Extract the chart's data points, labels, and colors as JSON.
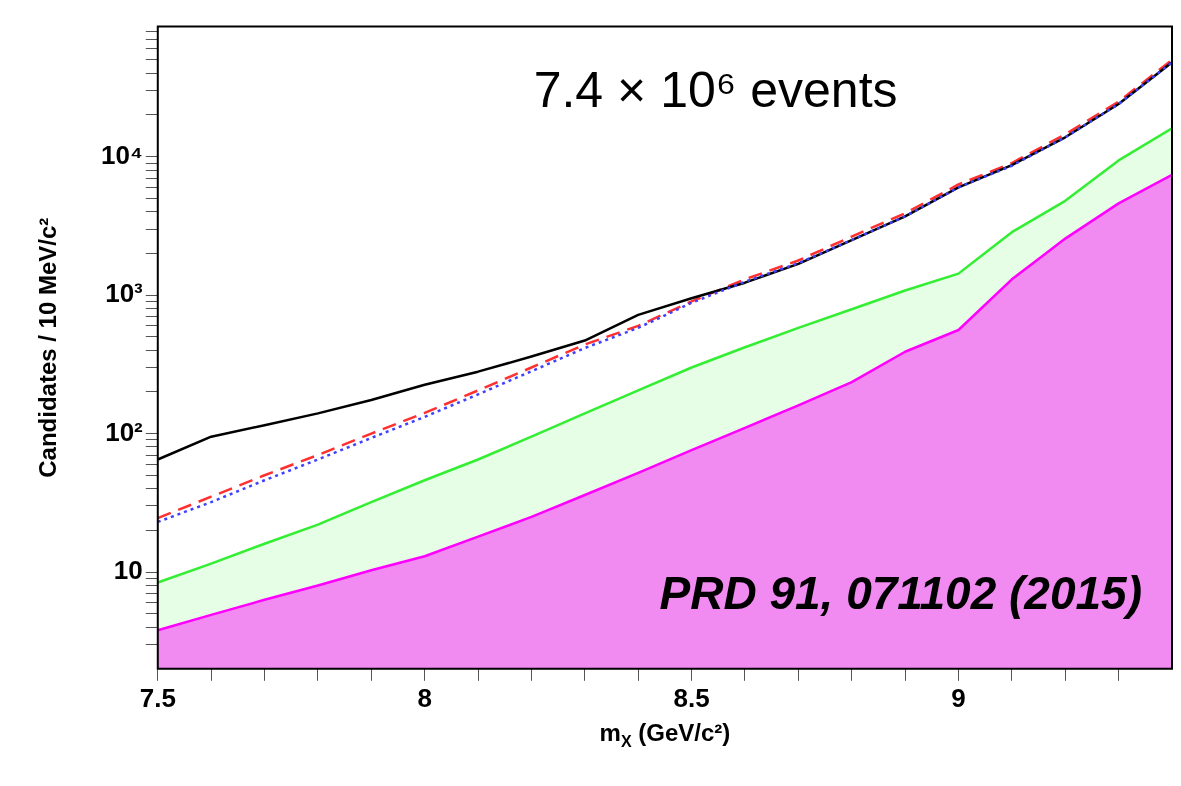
{
  "chart_data": {
    "type": "line",
    "xlabel": "m$_{X}$ (GeV/c²)",
    "ylabel": "Candidates / 10 MeV/c²",
    "annotations": [
      "7.4 × 10⁶ events",
      "PRD 91, 071102 (2015)"
    ],
    "x": [
      7.5,
      7.6,
      7.7,
      7.8,
      7.9,
      8.0,
      8.1,
      8.2,
      8.3,
      8.4,
      8.5,
      8.6,
      8.7,
      8.8,
      8.9,
      9.0,
      9.1,
      9.2,
      9.3,
      9.4
    ],
    "series": [
      {
        "type": "line",
        "color": "#000000",
        "line_style": "solid",
        "values": [
          65,
          95,
          115,
          140,
          175,
          225,
          280,
          360,
          470,
          720,
          950,
          1230,
          1680,
          2500,
          3700,
          6000,
          8700,
          13800,
          24000,
          48000
        ]
      },
      {
        "type": "line",
        "color": "#ff3030",
        "line_style": "dashed",
        "values": [
          24.5,
          35,
          50,
          70,
          100,
          141,
          205,
          300,
          440,
          600,
          900,
          1300,
          1780,
          2650,
          3900,
          6300,
          9000,
          14500,
          25000,
          50000
        ]
      },
      {
        "type": "line",
        "color": "#4040ff",
        "line_style": "dotted",
        "values": [
          23,
          32,
          46,
          65,
          93,
          132,
          192,
          282,
          415,
          580,
          880,
          1250,
          1700,
          2500,
          3700,
          6000,
          8600,
          13800,
          24000,
          48000
        ]
      },
      {
        "type": "area",
        "color": "#ff00ff",
        "values": [
          3.8,
          4.9,
          6.3,
          8.0,
          10.3,
          13,
          18,
          25,
          36,
          52,
          76,
          110,
          160,
          235,
          390,
          560,
          1300,
          2560,
          4600,
          7400
        ]
      },
      {
        "type": "area",
        "color": "#33ee33",
        "values": [
          8.4,
          11.5,
          16,
          22,
          32,
          46,
          65,
          95,
          140,
          205,
          300,
          420,
          580,
          790,
          1080,
          1430,
          2850,
          4800,
          9400,
          16000
        ]
      }
    ],
    "xlim": [
      7.5,
      9.4
    ],
    "xticks": [
      7.5,
      {
        "value": 7.6,
        "label": null
      },
      {
        "value": 7.7,
        "label": null
      },
      {
        "value": 7.8,
        "label": null
      },
      {
        "value": 7.9,
        "label": null
      },
      8,
      {
        "value": 8.1,
        "label": null
      },
      {
        "value": 8.2,
        "label": null
      },
      {
        "value": 8.3,
        "label": null
      },
      {
        "value": 8.4,
        "label": null
      },
      8.5,
      {
        "value": 8.6,
        "label": null
      },
      {
        "value": 8.7,
        "label": null
      },
      {
        "value": 8.8,
        "label": null
      },
      {
        "value": 8.9,
        "label": null
      },
      9,
      {
        "value": 9.1,
        "label": null
      },
      {
        "value": 9.2,
        "label": null
      },
      {
        "value": 9.3,
        "label": null
      }
    ],
    "log": "y",
    "ylim": [
      2,
      87000
    ],
    "yticks": [
      {
        "value": 3,
        "label": null
      },
      {
        "value": 4,
        "label": null
      },
      {
        "value": 5,
        "label": null
      },
      {
        "value": 6,
        "label": null
      },
      {
        "value": 7,
        "label": null
      },
      {
        "value": 8,
        "label": null
      },
      {
        "value": 9,
        "label": null
      },
      10,
      {
        "value": 20,
        "label": null
      },
      {
        "value": 30,
        "label": null
      },
      {
        "value": 40,
        "label": null
      },
      {
        "value": 50,
        "label": null
      },
      {
        "value": 60,
        "label": null
      },
      {
        "value": 70,
        "label": null
      },
      {
        "value": 80,
        "label": null
      },
      {
        "value": 90,
        "label": null
      },
      {
        "value": 100,
        "label": "10²"
      },
      {
        "value": 200,
        "label": null
      },
      {
        "value": 300,
        "label": null
      },
      {
        "value": 400,
        "label": null
      },
      {
        "value": 500,
        "label": null
      },
      {
        "value": 600,
        "label": null
      },
      {
        "value": 700,
        "label": null
      },
      {
        "value": 800,
        "label": null
      },
      {
        "value": 900,
        "label": null
      },
      {
        "value": 1000,
        "label": "10³"
      },
      {
        "value": 2000,
        "label": null
      },
      {
        "value": 3000,
        "label": null
      },
      {
        "value": 4000,
        "label": null
      },
      {
        "value": 5000,
        "label": null
      },
      {
        "value": 6000,
        "label": null
      },
      {
        "value": 7000,
        "label": null
      },
      {
        "value": 8000,
        "label": null
      },
      {
        "value": 9000,
        "label": null
      },
      {
        "value": 10000,
        "label": "10⁴"
      },
      {
        "value": 20000,
        "label": null
      },
      {
        "value": 30000,
        "label": null
      },
      {
        "value": 40000,
        "label": null
      },
      {
        "value": 50000,
        "label": null
      },
      {
        "value": 60000,
        "label": null
      },
      {
        "value": 70000,
        "label": null
      },
      {
        "value": 80000,
        "label": null
      }
    ],
    "grid": false,
    "legend": false,
    "marker": "none"
  }
}
